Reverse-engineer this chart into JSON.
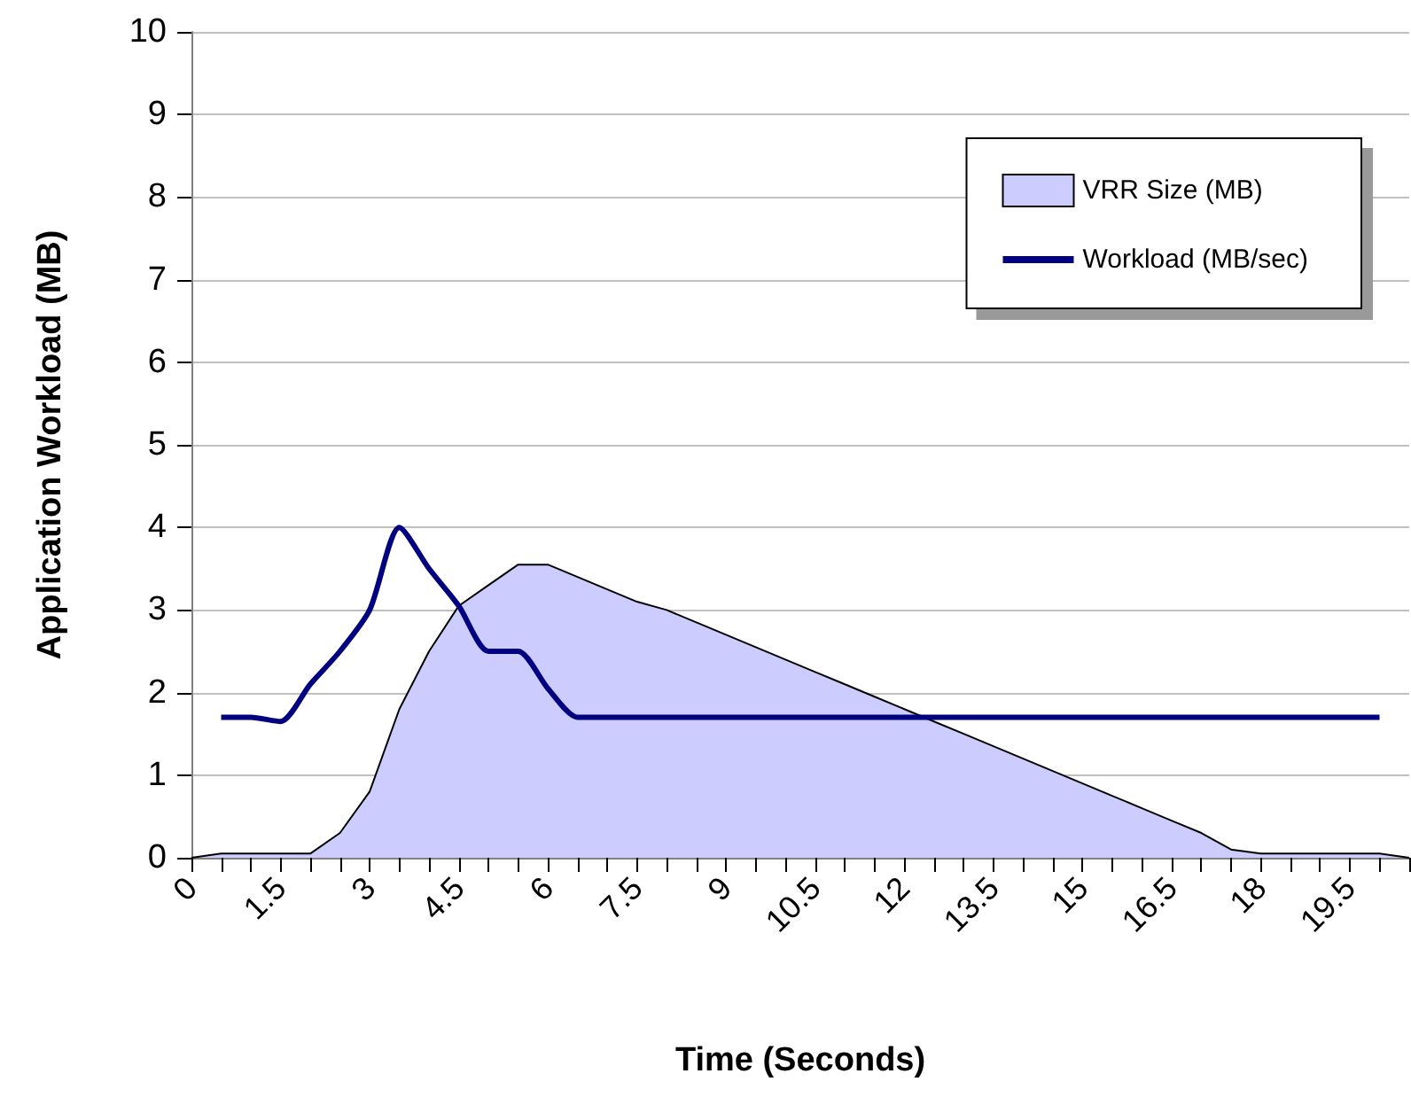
{
  "chart_data": {
    "type": "area",
    "xlabel": "Time (Seconds)",
    "ylabel": "Application Workload (MB)",
    "xlim": [
      0,
      20.5
    ],
    "xticks": [
      0,
      {
        "value": 0.5,
        "label": null
      },
      {
        "value": 1,
        "label": null
      },
      1.5,
      {
        "value": 2,
        "label": null
      },
      {
        "value": 2.5,
        "label": null
      },
      3,
      {
        "value": 3.5,
        "label": null
      },
      {
        "value": 4,
        "label": null
      },
      4.5,
      {
        "value": 5,
        "label": null
      },
      {
        "value": 5.5,
        "label": null
      },
      6,
      {
        "value": 6.5,
        "label": null
      },
      {
        "value": 7,
        "label": null
      },
      7.5,
      {
        "value": 8,
        "label": null
      },
      {
        "value": 8.5,
        "label": null
      },
      9,
      {
        "value": 9.5,
        "label": null
      },
      {
        "value": 10,
        "label": null
      },
      10.5,
      {
        "value": 11,
        "label": null
      },
      {
        "value": 11.5,
        "label": null
      },
      12,
      {
        "value": 12.5,
        "label": null
      },
      {
        "value": 13,
        "label": null
      },
      13.5,
      {
        "value": 14,
        "label": null
      },
      {
        "value": 14.5,
        "label": null
      },
      15,
      {
        "value": 15.5,
        "label": null
      },
      {
        "value": 16,
        "label": null
      },
      16.5,
      {
        "value": 17,
        "label": null
      },
      {
        "value": 17.5,
        "label": null
      },
      18,
      {
        "value": 18.5,
        "label": null
      },
      {
        "value": 19,
        "label": null
      },
      19.5,
      {
        "value": 20,
        "label": null
      },
      {
        "value": 20.5,
        "label": null
      }
    ],
    "ylim": [
      0,
      10
    ],
    "yticks": [
      0,
      1,
      2,
      3,
      4,
      5,
      6,
      7,
      8,
      9,
      10
    ],
    "grid": "y",
    "legend": "top right",
    "marker": "none",
    "series": [
      {
        "name": "VRR Size (MB)",
        "color": "#ccccff",
        "x": [
          0,
          0.5,
          1,
          1.5,
          2,
          2.5,
          3,
          3.5,
          4,
          4.5,
          5,
          5.5,
          6,
          6.5,
          7,
          7.5,
          8,
          8.5,
          9,
          9.5,
          10,
          10.5,
          11,
          11.5,
          12,
          12.5,
          13,
          13.5,
          14,
          14.5,
          15,
          15.5,
          16,
          16.5,
          17,
          17.5,
          18,
          18.5,
          19,
          19.5,
          20,
          20.5
        ],
        "values": [
          0,
          0.05,
          0.05,
          0.05,
          0.05,
          0.3,
          0.8,
          1.8,
          2.5,
          3.05,
          3.3,
          3.55,
          3.55,
          3.4,
          3.25,
          3.1,
          3.0,
          2.85,
          2.7,
          2.55,
          2.4,
          2.25,
          2.1,
          1.95,
          1.8,
          1.65,
          1.5,
          1.35,
          1.2,
          1.05,
          0.9,
          0.75,
          0.6,
          0.45,
          0.3,
          0.1,
          0.05,
          0.05,
          0.05,
          0.05,
          0.05,
          0
        ]
      },
      {
        "name": "Workload (MB/sec)",
        "type": "line",
        "color": "#000080",
        "x": [
          0.5,
          1,
          1.5,
          2,
          2.5,
          3,
          3.5,
          4,
          4.5,
          5,
          5.5,
          6,
          6.5,
          7,
          7.5,
          8,
          8.5,
          9,
          9.5,
          10,
          10.5,
          11,
          11.5,
          12,
          12.5,
          13,
          13.5,
          14,
          14.5,
          15,
          15.5,
          16,
          16.5,
          17,
          17.5,
          18,
          18.5,
          19,
          19.5,
          20
        ],
        "values": [
          1.7,
          1.7,
          1.65,
          2.1,
          2.5,
          3.0,
          4.0,
          3.5,
          3.05,
          2.5,
          2.5,
          2.05,
          1.7,
          1.7,
          1.7,
          1.7,
          1.7,
          1.7,
          1.7,
          1.7,
          1.7,
          1.7,
          1.7,
          1.7,
          1.7,
          1.7,
          1.7,
          1.7,
          1.7,
          1.7,
          1.7,
          1.7,
          1.7,
          1.7,
          1.7,
          1.7,
          1.7,
          1.7,
          1.7,
          1.7
        ]
      }
    ]
  }
}
